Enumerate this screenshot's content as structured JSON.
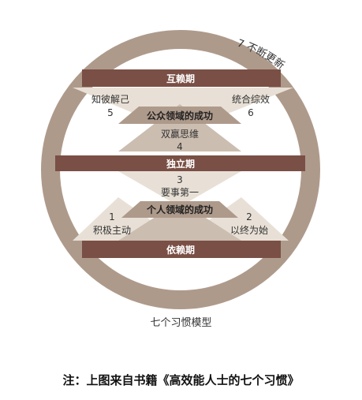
{
  "diagram": {
    "arc_label": "7 不断更新",
    "bars": {
      "top": "互赖期",
      "middle": "独立期",
      "bottom": "依赖期"
    },
    "upper": {
      "left_label": "知彼解己",
      "left_num": "5",
      "right_label": "统合综效",
      "right_num": "6",
      "center_band": "公众领域的成功",
      "bottom_label": "双赢思维",
      "bottom_num": "4"
    },
    "lower": {
      "top_num": "3",
      "top_label": "要事第一",
      "center_band": "个人领域的成功",
      "left_num": "1",
      "left_label": "积极主动",
      "right_num": "2",
      "right_label": "以终为始"
    },
    "colors": {
      "ring": "#ae9a8b",
      "bar": "#7a4f45",
      "light": "#e8e0d6",
      "medium": "#cbbdb0",
      "band": "#ae9a8b"
    }
  },
  "caption": "七个习惯模型",
  "note": "注：上图来自书籍《高效能人士的七个习惯》"
}
